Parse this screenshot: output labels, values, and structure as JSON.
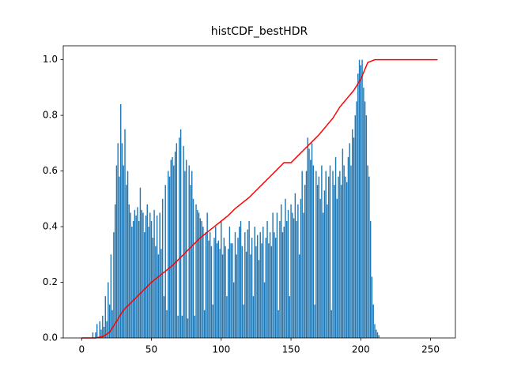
{
  "chart_data": {
    "type": "bar",
    "title": "histCDF_bestHDR",
    "xlim": [
      -13.2,
      267.8
    ],
    "ylim": [
      0,
      1.05
    ],
    "xticks": [
      0,
      50,
      100,
      150,
      200,
      250
    ],
    "yticks": [
      {
        "value": 0,
        "label": "0.0"
      },
      0.2,
      0.4,
      0.6,
      0.8,
      {
        "value": 1,
        "label": "1.0"
      }
    ],
    "series": [
      {
        "type": "bar",
        "color": "#1f77b4",
        "x": [
          0,
          1,
          2,
          3,
          4,
          5,
          6,
          7,
          8,
          9,
          10,
          11,
          12,
          13,
          14,
          15,
          16,
          17,
          18,
          19,
          20,
          21,
          22,
          23,
          24,
          25,
          26,
          27,
          28,
          29,
          30,
          31,
          32,
          33,
          34,
          35,
          36,
          37,
          38,
          39,
          40,
          41,
          42,
          43,
          44,
          45,
          46,
          47,
          48,
          49,
          50,
          51,
          52,
          53,
          54,
          55,
          56,
          57,
          58,
          59,
          60,
          61,
          62,
          63,
          64,
          65,
          66,
          67,
          68,
          69,
          70,
          71,
          72,
          73,
          74,
          75,
          76,
          77,
          78,
          79,
          80,
          81,
          82,
          83,
          84,
          85,
          86,
          87,
          88,
          89,
          90,
          91,
          92,
          93,
          94,
          95,
          96,
          97,
          98,
          99,
          100,
          101,
          102,
          103,
          104,
          105,
          106,
          107,
          108,
          109,
          110,
          111,
          112,
          113,
          114,
          115,
          116,
          117,
          118,
          119,
          120,
          121,
          122,
          123,
          124,
          125,
          126,
          127,
          128,
          129,
          130,
          131,
          132,
          133,
          134,
          135,
          136,
          137,
          138,
          139,
          140,
          141,
          142,
          143,
          144,
          145,
          146,
          147,
          148,
          149,
          150,
          151,
          152,
          153,
          154,
          155,
          156,
          157,
          158,
          159,
          160,
          161,
          162,
          163,
          164,
          165,
          166,
          167,
          168,
          169,
          170,
          171,
          172,
          173,
          174,
          175,
          176,
          177,
          178,
          179,
          180,
          181,
          182,
          183,
          184,
          185,
          186,
          187,
          188,
          189,
          190,
          191,
          192,
          193,
          194,
          195,
          196,
          197,
          198,
          199,
          200,
          201,
          202,
          203,
          204,
          205,
          206,
          207,
          208,
          209,
          210,
          211,
          212,
          213,
          214,
          215
        ],
        "values": [
          0,
          0,
          0,
          0,
          0,
          0,
          0,
          0,
          0.02,
          0,
          0.02,
          0.05,
          0,
          0.06,
          0.03,
          0.08,
          0.04,
          0.15,
          0.06,
          0.2,
          0.12,
          0.3,
          0.1,
          0.38,
          0.48,
          0.62,
          0.7,
          0.58,
          0.84,
          0.7,
          0.62,
          0.75,
          0.55,
          0.6,
          0.48,
          0.45,
          0.4,
          0.42,
          0.46,
          0.44,
          0.47,
          0.42,
          0.54,
          0.46,
          0.45,
          0.38,
          0.44,
          0.48,
          0.4,
          0.45,
          0.42,
          0.36,
          0.46,
          0.33,
          0.44,
          0.3,
          0.45,
          0.32,
          0.5,
          0.15,
          0.55,
          0.1,
          0.6,
          0.58,
          0.64,
          0.65,
          0.62,
          0.67,
          0.7,
          0.08,
          0.72,
          0.75,
          0.08,
          0.69,
          0.6,
          0.64,
          0.07,
          0.62,
          0.55,
          0.6,
          0.5,
          0.08,
          0.48,
          0.46,
          0.45,
          0.43,
          0.42,
          0.4,
          0.1,
          0.38,
          0.45,
          0.35,
          0.38,
          0.33,
          0.12,
          0.36,
          0.4,
          0.34,
          0.35,
          0.32,
          0.42,
          0.3,
          0.36,
          0.33,
          0.15,
          0.32,
          0.4,
          0.34,
          0.34,
          0.2,
          0.38,
          0.3,
          0.36,
          0.4,
          0.42,
          0.33,
          0.12,
          0.38,
          0.31,
          0.39,
          0.42,
          0.3,
          0.36,
          0.15,
          0.4,
          0.33,
          0.37,
          0.28,
          0.38,
          0.34,
          0.4,
          0.2,
          0.36,
          0.42,
          0.34,
          0.38,
          0.33,
          0.45,
          0.38,
          0.36,
          0.45,
          0.1,
          0.42,
          0.48,
          0.38,
          0.4,
          0.5,
          0.42,
          0.46,
          0.15,
          0.48,
          0.45,
          0.43,
          0.52,
          0.42,
          0.48,
          0.3,
          0.5,
          0.6,
          0.45,
          0.55,
          0.6,
          0.72,
          0.68,
          0.64,
          0.7,
          0.62,
          0.12,
          0.6,
          0.55,
          0.58,
          0.5,
          0.62,
          0.45,
          0.53,
          0.6,
          0.48,
          0.58,
          0.62,
          0.1,
          0.6,
          0.55,
          0.65,
          0.5,
          0.58,
          0.6,
          0.55,
          0.68,
          0.62,
          0.58,
          0.56,
          0.65,
          0.7,
          0.62,
          0.75,
          0.72,
          0.8,
          0.85,
          0.95,
          1.0,
          0.98,
          1.0,
          0.9,
          0.85,
          0.8,
          0.62,
          0.58,
          0.42,
          0.22,
          0.12,
          0.05,
          0.03,
          0.02,
          0.01,
          0,
          0
        ]
      },
      {
        "type": "line",
        "color": "#ff0000",
        "x": [
          0,
          5,
          10,
          15,
          20,
          25,
          30,
          35,
          40,
          45,
          50,
          55,
          60,
          65,
          70,
          75,
          80,
          85,
          90,
          95,
          100,
          105,
          110,
          115,
          120,
          125,
          130,
          135,
          140,
          145,
          150,
          155,
          160,
          165,
          170,
          175,
          180,
          185,
          190,
          195,
          200,
          205,
          210,
          215,
          220,
          225,
          230,
          235,
          240,
          245,
          250,
          255
        ],
        "values": [
          0,
          0,
          0,
          0.005,
          0.02,
          0.06,
          0.1,
          0.125,
          0.15,
          0.175,
          0.2,
          0.22,
          0.24,
          0.26,
          0.285,
          0.31,
          0.335,
          0.36,
          0.38,
          0.4,
          0.42,
          0.44,
          0.465,
          0.485,
          0.505,
          0.53,
          0.555,
          0.58,
          0.605,
          0.63,
          0.63,
          0.655,
          0.68,
          0.705,
          0.73,
          0.76,
          0.79,
          0.83,
          0.86,
          0.89,
          0.93,
          0.99,
          1,
          1,
          1,
          1,
          1,
          1,
          1,
          1,
          1,
          1
        ]
      }
    ]
  }
}
